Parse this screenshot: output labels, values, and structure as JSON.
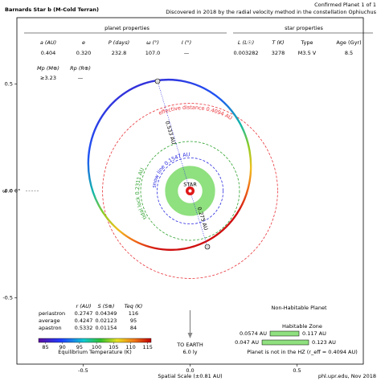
{
  "header": {
    "title": "Barnards Star b (M-Cold Terran)",
    "status": "Confirmed Planet 1 of 1",
    "discovery": "Discovered in 2018 by the radial velocity method in the constellation Ophiuchus"
  },
  "planet_properties": {
    "title": "planet properties",
    "columns": [
      "a (AU)",
      "e",
      "P (days)",
      "ω (°)",
      "I (°)"
    ],
    "values": [
      "0.404",
      "0.320",
      "232.8",
      "107.0",
      "—"
    ],
    "columns2": [
      "Mp (M⊕)",
      "Rp (R⊕)"
    ],
    "values2": [
      "≥3.23",
      "—"
    ]
  },
  "star_properties": {
    "title": "star properties",
    "columns": [
      "L (L☉)",
      "T (K)",
      "Type",
      "Age (Gyr)"
    ],
    "values": [
      "0.003282",
      "3278",
      "M3.5 V",
      "8.5"
    ]
  },
  "chart_data": {
    "type": "orbit",
    "xlim": [
      -0.81,
      0.81
    ],
    "ylim": [
      -0.81,
      0.81
    ],
    "xticks": [
      -0.5,
      {
        "value": 0,
        "label": "0.0"
      },
      0.5
    ],
    "yticks": [
      0.5,
      {
        "value": 0,
        "label": "0.0"
      },
      -0.5
    ],
    "reference_label": "ω = 0°",
    "star_label": "STAR",
    "circles": [
      {
        "label": "effective distance 0.4094 AU",
        "radius": 0.4094,
        "color": "#e8333a"
      },
      {
        "label": "tidal lock 0.2311 AU",
        "radius": 0.2311,
        "color": "#2ca02c"
      },
      {
        "label": "snow line 0.1547 AU",
        "radius": 0.1547,
        "color": "#2a2ae0"
      }
    ],
    "hz_ring": {
      "inner": 0.0574,
      "outer": 0.117,
      "color": "#8fe07f"
    },
    "apastron_label": "0.533 AU",
    "periastron_label": "0.275 AU",
    "scale_label": "Spatial Scale (±0.81 AU)"
  },
  "temperature_table": {
    "columns": [
      "r (AU)",
      "S (S⊕)",
      "Teq (K)"
    ],
    "rows": [
      [
        "periastron",
        "0.2747",
        "0.04349",
        "116"
      ],
      [
        "average",
        "0.4247",
        "0.02123",
        "95"
      ],
      [
        "apastron",
        "0.5332",
        "0.01154",
        "84"
      ]
    ],
    "highlight_row": 1,
    "highlight_color": "#e00000"
  },
  "colorbar": {
    "title": "Equilibrium Temperature (K)",
    "lim": [
      83,
      116
    ],
    "ticks": [
      85,
      90,
      95,
      100,
      105,
      110,
      115
    ]
  },
  "classification": "Non-Habitable Planet",
  "hz_box": {
    "title": "Habitable Zone",
    "inner_row": [
      "0.0574 AU",
      "0.117 AU"
    ],
    "outer_row": [
      "0.047 AU",
      "0.123 AU"
    ],
    "note": "Planet is not in the HZ (r_eff = 0.4094 AU)"
  },
  "earth": {
    "label": "TO EARTH",
    "distance": "6.0 ly"
  },
  "credit": "phl.upr.edu, Nov 2018"
}
